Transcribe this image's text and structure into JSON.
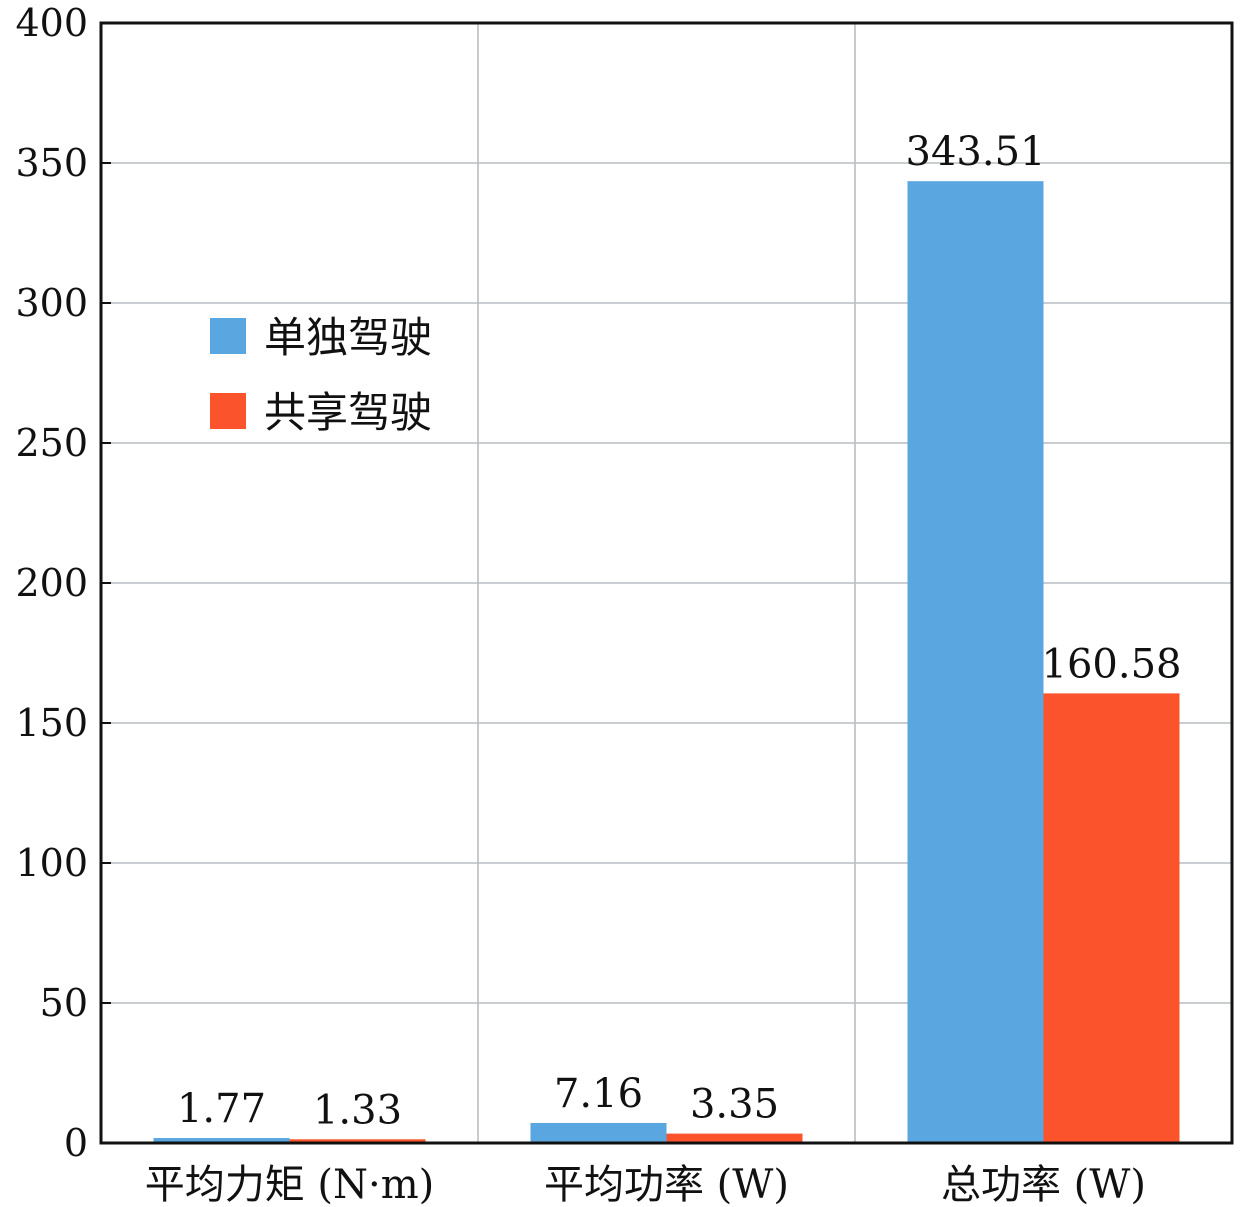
{
  "chart_data": {
    "type": "bar",
    "title": "",
    "xlabel": "",
    "ylabel": "",
    "categories": [
      "平均力矩 (N·m)",
      "平均功率 (W)",
      "总功率 (W)"
    ],
    "series": [
      {
        "name": "单独驾驶",
        "color": "#5aa6e0",
        "values": [
          1.77,
          7.16,
          343.51
        ],
        "labels": [
          "1.77",
          "7.16",
          "343.51"
        ]
      },
      {
        "name": "共享驾驶",
        "color": "#fb542c",
        "values": [
          1.33,
          3.35,
          160.58
        ],
        "labels": [
          "1.33",
          "3.35",
          "160.58"
        ]
      }
    ],
    "ylim": [
      0,
      400
    ],
    "yticks": [
      0,
      50,
      100,
      150,
      200,
      250,
      300,
      350,
      400
    ],
    "ytick_labels": [
      "0",
      "50",
      "100",
      "150",
      "200",
      "250",
      "300",
      "350",
      "400"
    ],
    "grid": true,
    "legend_position": "upper-left"
  }
}
